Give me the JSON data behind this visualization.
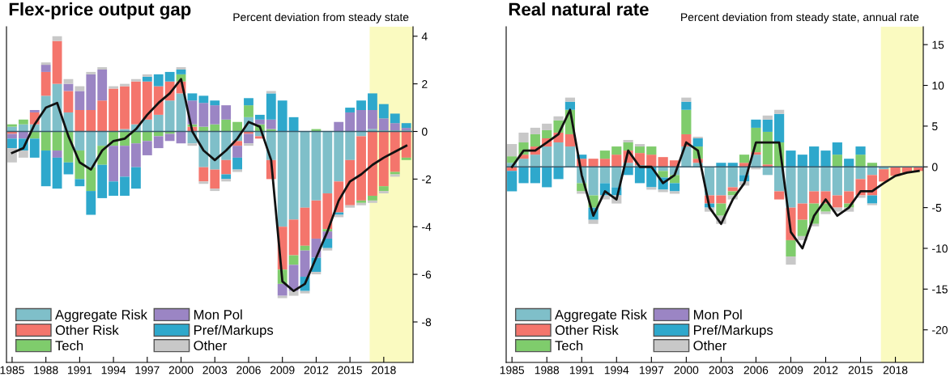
{
  "chart_data": [
    {
      "type": "bar",
      "stacked": true,
      "title": "Flex-price output gap",
      "subtitle": "Percent deviation from steady state",
      "x": [
        1985,
        1986,
        1987,
        1988,
        1989,
        1990,
        1991,
        1992,
        1993,
        1994,
        1995,
        1996,
        1997,
        1998,
        1999,
        2000,
        2001,
        2002,
        2003,
        2004,
        2005,
        2006,
        2007,
        2008,
        2009,
        2010,
        2011,
        2012,
        2013,
        2014,
        2015,
        2016,
        2017,
        2018,
        2019,
        2020
      ],
      "xlim": [
        1984.5,
        2020.6
      ],
      "ylim": [
        -9.7,
        4.4
      ],
      "xticks": [
        1985,
        1988,
        1991,
        1994,
        1997,
        2000,
        2003,
        2006,
        2009,
        2012,
        2015,
        2018
      ],
      "yticks": [
        4,
        2,
        0,
        -2,
        -4,
        -6,
        -8
      ],
      "grid": false,
      "legend": "bottom left",
      "ref_lines": [
        {
          "axis": "y",
          "value": 0,
          "color": "#3a5a6a"
        }
      ],
      "bands": [
        {
          "axis": "x",
          "from": 2016.75,
          "to": 2020.6,
          "color": "#fafac0"
        }
      ],
      "series": [
        {
          "name": "Aggregate Risk",
          "color": "#7fbfc9",
          "values": [
            0.2,
            0.3,
            0.3,
            1.5,
            2.0,
            0.8,
            -0.8,
            -1.5,
            -0.6,
            0.0,
            0.1,
            0.3,
            0.5,
            0.7,
            1.3,
            1.6,
            -0.5,
            -1.5,
            -1.6,
            -1.2,
            -0.4,
            0.6,
            -0.2,
            -1.2,
            -4.0,
            -3.7,
            -3.2,
            -2.9,
            -2.6,
            -2.1,
            -1.2,
            -0.2,
            0.1,
            0.05,
            0.05,
            0.05
          ]
        },
        {
          "name": "Other Risk",
          "color": "#f4756c",
          "values": [
            -0.1,
            0.0,
            0.5,
            1.0,
            1.8,
            0.9,
            0.9,
            0.9,
            1.3,
            1.8,
            1.8,
            1.8,
            1.6,
            1.2,
            0.8,
            0.5,
            0.2,
            -0.6,
            -0.8,
            -0.6,
            -0.2,
            -0.1,
            -0.1,
            -0.8,
            -1.8,
            -1.5,
            -1.6,
            -1.6,
            -1.5,
            -1.3,
            -1.9,
            -2.7,
            -2.7,
            -2.3,
            -1.7,
            -1.1
          ]
        },
        {
          "name": "Tech",
          "color": "#7fcc6c",
          "values": [
            0.1,
            0.2,
            -0.3,
            -0.8,
            -0.8,
            -1.3,
            -1.2,
            -1.0,
            -0.8,
            -0.6,
            -0.6,
            -0.5,
            -0.4,
            -0.2,
            -0.1,
            0.3,
            0.1,
            0.2,
            0.3,
            0.5,
            0.4,
            0.5,
            0.3,
            0.1,
            -0.6,
            -0.4,
            -0.2,
            0.1,
            -0.1,
            0.0,
            0.0,
            -0.1,
            -0.2,
            -0.2,
            -0.1,
            -0.1
          ]
        },
        {
          "name": "Mon Pol",
          "color": "#9b85c4",
          "values": [
            -0.2,
            -0.3,
            0.1,
            0.3,
            -0.3,
            0.3,
            0.8,
            1.5,
            1.3,
            -1.5,
            -1.3,
            -1.0,
            -0.6,
            -0.5,
            -0.3,
            -0.5,
            1.0,
            1.0,
            0.8,
            0.6,
            -0.5,
            -0.4,
            0.2,
            0.4,
            -0.5,
            -1.1,
            -1.1,
            -0.8,
            -0.3,
            0.4,
            0.8,
            0.9,
            0.8,
            0.5,
            0.3,
            0.1
          ]
        },
        {
          "name": "Pref/Markups",
          "color": "#2ea8cc",
          "values": [
            -0.4,
            -0.5,
            -0.8,
            -1.5,
            -1.3,
            -0.5,
            -0.3,
            -1.0,
            -1.4,
            -0.6,
            -0.8,
            -0.9,
            0.2,
            0.5,
            0.4,
            0.2,
            0.3,
            0.3,
            0.2,
            -0.2,
            -0.5,
            0.3,
            0.2,
            1.1,
            1.3,
            0.6,
            -0.6,
            -0.6,
            -0.4,
            -0.1,
            0.2,
            0.4,
            0.7,
            0.6,
            0.4,
            0.2
          ]
        },
        {
          "name": "Other",
          "color": "#c8c8c8",
          "values": [
            -0.6,
            -0.3,
            0.0,
            0.1,
            0.2,
            0.2,
            0.2,
            0.1,
            0.1,
            0.1,
            0.1,
            0.1,
            0.1,
            0.0,
            0.0,
            0.1,
            -0.1,
            -0.1,
            -0.1,
            -0.1,
            -0.1,
            -0.1,
            0.0,
            0.1,
            -0.1,
            -0.2,
            -0.1,
            -0.1,
            -0.1,
            -0.1,
            -0.1,
            -0.1,
            -0.1,
            -0.1,
            -0.1,
            0.0
          ]
        },
        {
          "type": "line",
          "color": "#111111",
          "values": [
            -0.9,
            -0.7,
            0.3,
            1.0,
            1.2,
            -0.2,
            -1.3,
            -1.6,
            -0.8,
            -0.4,
            -0.3,
            0.1,
            0.7,
            1.2,
            1.6,
            2.2,
            0.0,
            -0.8,
            -1.2,
            -0.8,
            -0.3,
            0.4,
            0.2,
            -1.2,
            -6.3,
            -6.7,
            -6.4,
            -5.3,
            -4.2,
            -2.9,
            -2.1,
            -1.8,
            -1.4,
            -1.1,
            -0.85,
            -0.6
          ]
        }
      ]
    },
    {
      "type": "bar",
      "stacked": true,
      "title": "Real natural rate",
      "subtitle": "Percent deviation from steady state, annual rate",
      "x": [
        1985,
        1986,
        1987,
        1988,
        1989,
        1990,
        1991,
        1992,
        1993,
        1994,
        1995,
        1996,
        1997,
        1998,
        1999,
        2000,
        2001,
        2002,
        2003,
        2004,
        2005,
        2006,
        2007,
        2008,
        2009,
        2010,
        2011,
        2012,
        2013,
        2014,
        2015,
        2016,
        2017,
        2018,
        2019,
        2020
      ],
      "xlim": [
        1984.5,
        2020.4
      ],
      "ylim": [
        -24,
        17.2
      ],
      "xticks": [
        1985,
        1988,
        1991,
        1994,
        1997,
        2000,
        2003,
        2006,
        2009,
        2012,
        2015,
        2018
      ],
      "yticks": [
        15,
        10,
        5,
        0,
        -5,
        -10,
        -15,
        -20
      ],
      "grid": false,
      "legend": "bottom left",
      "ref_lines": [
        {
          "axis": "y",
          "value": 0,
          "color": "#3a5a6a"
        }
      ],
      "bands": [
        {
          "axis": "x",
          "from": 2016.75,
          "to": 2020.4,
          "color": "#fafac0"
        }
      ],
      "series": [
        {
          "name": "Aggregate Risk",
          "color": "#7fbfc9",
          "values": [
            0.5,
            1.0,
            1.5,
            2.5,
            3.0,
            2.5,
            -2.0,
            -3.5,
            -2.0,
            -2.5,
            0.5,
            0.2,
            0,
            -0.5,
            -1.0,
            2.5,
            0.5,
            -3.5,
            -3.5,
            -2.5,
            -1.0,
            1.5,
            -1.0,
            -3.0,
            -5.0,
            -4.5,
            -3.0,
            -3.0,
            -3.5,
            -3.0,
            -1.5,
            -1.0,
            -0.3,
            0,
            0,
            0
          ]
        },
        {
          "name": "Other Risk",
          "color": "#f4756c",
          "values": [
            -0.5,
            0.5,
            1.0,
            1.0,
            1.2,
            1.5,
            1.0,
            1.0,
            1.0,
            1.5,
            1.5,
            1.5,
            1.5,
            1.2,
            0.8,
            1.5,
            0.5,
            -1.0,
            -1.0,
            -0.5,
            0.5,
            0.3,
            0.3,
            -1.0,
            -4.0,
            -2.0,
            -1.5,
            -1.5,
            -1.5,
            -1.5,
            -2.0,
            -2.5,
            -1.5,
            -1.1,
            -0.7,
            -0.5
          ]
        },
        {
          "name": "Tech",
          "color": "#7fcc6c",
          "values": [
            0.8,
            1.5,
            1.5,
            1.0,
            1.5,
            3.0,
            -1.0,
            -1.5,
            1.0,
            1.0,
            1.0,
            0.8,
            1.0,
            -0.8,
            -1.0,
            3.0,
            1.5,
            0,
            -1.5,
            -0.5,
            1.0,
            3.0,
            4.0,
            3.0,
            -2.0,
            -2.0,
            -2.5,
            -1.0,
            1.5,
            -0.5,
            1.5,
            0.5,
            0,
            0,
            0,
            0
          ]
        },
        {
          "name": "Mon Pol",
          "color": "#9b85c4",
          "values": [
            0,
            0,
            0,
            0,
            0,
            0,
            0,
            0,
            0,
            0,
            0,
            0,
            0,
            0,
            0,
            0,
            0,
            0,
            0,
            0,
            0,
            0,
            0,
            0,
            0,
            0,
            0,
            0,
            0,
            0,
            0,
            0,
            0,
            0,
            0,
            0
          ]
        },
        {
          "name": "Pref/Markups",
          "color": "#2ea8cc",
          "values": [
            -2.5,
            -2.0,
            -2.0,
            -2.5,
            -1.5,
            1.0,
            0.5,
            -1.5,
            -1.5,
            -1.0,
            -1.0,
            -2.0,
            -2.5,
            -1.5,
            -1.0,
            1.0,
            1.0,
            -0.5,
            0.5,
            0.5,
            -0.8,
            1.0,
            1.5,
            3.5,
            2.0,
            1.5,
            2.5,
            2.0,
            1.5,
            1.0,
            1.0,
            -1.0,
            0,
            0,
            0,
            0
          ]
        },
        {
          "name": "Other",
          "color": "#c8c8c8",
          "values": [
            1.5,
            1.2,
            0.8,
            0.8,
            0.5,
            0.5,
            -0.3,
            -0.5,
            -0.5,
            -1.0,
            0.3,
            0.3,
            -0.3,
            -0.3,
            -0.3,
            0.5,
            0.2,
            -0.5,
            -1.0,
            -0.5,
            -0.5,
            -0.3,
            0.5,
            0.5,
            -1.0,
            -0.5,
            -0.3,
            -0.3,
            -0.5,
            -0.5,
            -0.3,
            -0.2,
            0,
            0,
            0,
            0
          ]
        },
        {
          "type": "line",
          "color": "#111111",
          "values": [
            0,
            2,
            2,
            3,
            4,
            7,
            -1,
            -6,
            -3,
            -4,
            2,
            0,
            0,
            -2,
            -1,
            3,
            2,
            -5,
            -7,
            -4,
            -2,
            3,
            3,
            3,
            -8,
            -10,
            -6,
            -4,
            -6,
            -5,
            -3,
            -3,
            -2,
            -1.1,
            -0.7,
            -0.5
          ]
        }
      ]
    }
  ]
}
